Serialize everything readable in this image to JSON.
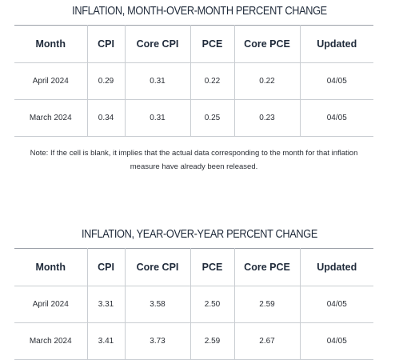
{
  "mom": {
    "title": "INFLATION, MONTH-OVER-MONTH PERCENT CHANGE",
    "headers": [
      "Month",
      "CPI",
      "Core CPI",
      "PCE",
      "Core PCE",
      "Updated"
    ],
    "rows": [
      [
        "April 2024",
        "0.29",
        "0.31",
        "0.22",
        "0.22",
        "04/05"
      ],
      [
        "March 2024",
        "0.34",
        "0.31",
        "0.25",
        "0.23",
        "04/05"
      ]
    ],
    "note": "Note: If the cell is blank, it implies that the actual data corresponding to the month for that inflation measure have already been released."
  },
  "yoy": {
    "title": "INFLATION, YEAR-OVER-YEAR PERCENT CHANGE",
    "headers": [
      "Month",
      "CPI",
      "Core CPI",
      "PCE",
      "Core PCE",
      "Updated"
    ],
    "rows": [
      [
        "April 2024",
        "3.31",
        "3.58",
        "2.50",
        "2.59",
        "04/05"
      ],
      [
        "March 2024",
        "3.41",
        "3.73",
        "2.59",
        "2.67",
        "04/05"
      ]
    ]
  }
}
